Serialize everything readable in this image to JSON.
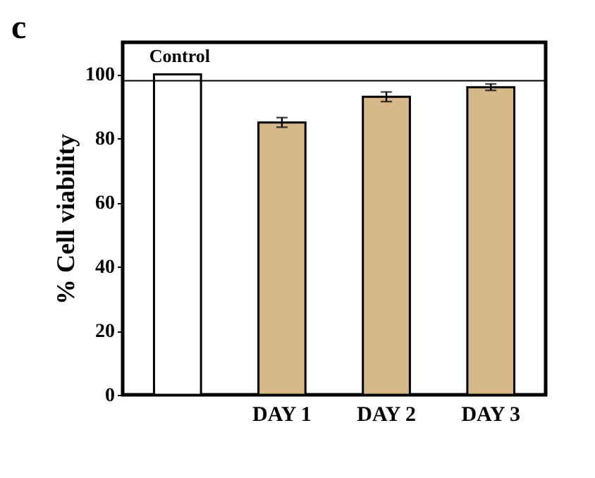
{
  "chart_data": {
    "type": "bar",
    "title": "c",
    "ylabel": "% Cell viability",
    "categories": [
      null,
      "DAY 1",
      "DAY 2",
      "DAY 3"
    ],
    "values": [
      100,
      85,
      93,
      96
    ],
    "errors": [
      null,
      1.5,
      1.5,
      1
    ],
    "colors": [
      "#ffffff",
      "#d6b88a",
      "#d6b88a",
      "#d6b88a"
    ],
    "ylim": [
      0,
      110
    ],
    "yticks": [
      0,
      20,
      40,
      60,
      80,
      100
    ],
    "ref_lines": [
      {
        "axis": "y",
        "value": 98
      }
    ],
    "annotations": [
      "Control"
    ],
    "grid": false
  }
}
